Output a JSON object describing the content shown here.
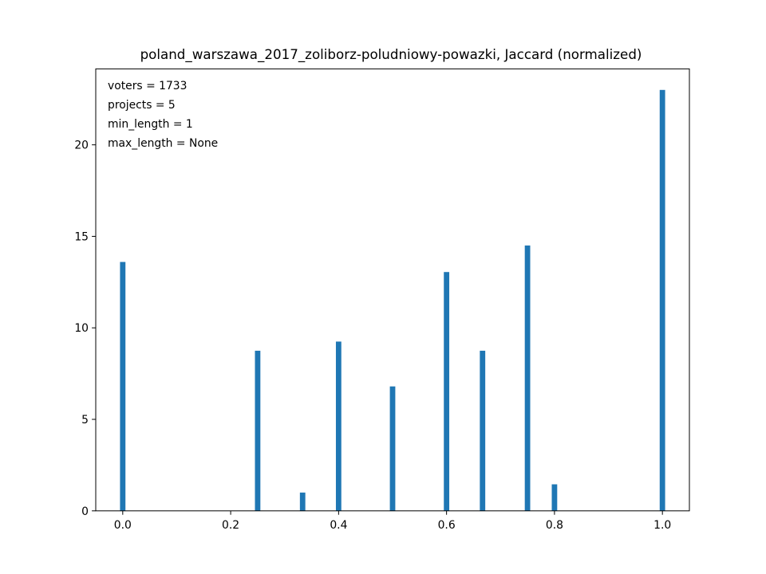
{
  "chart_data": {
    "type": "bar",
    "title": "poland_warszawa_2017_zoliborz-poludniowy-powazki, Jaccard (normalized)",
    "xlabel": "",
    "ylabel": "",
    "x": [
      0.0,
      0.25,
      0.3333,
      0.4,
      0.5,
      0.6,
      0.6667,
      0.75,
      0.8,
      1.0
    ],
    "values": [
      13.6,
      8.75,
      1.0,
      9.25,
      6.8,
      13.05,
      8.75,
      14.5,
      1.45,
      23.0
    ],
    "xlim": [
      -0.05,
      1.05
    ],
    "ylim": [
      0,
      24.15
    ],
    "xticks": [
      "0.0",
      "0.2",
      "0.4",
      "0.6",
      "0.8",
      "1.0"
    ],
    "xtick_values": [
      0.0,
      0.2,
      0.4,
      0.6,
      0.8,
      1.0
    ],
    "yticks": [
      "0",
      "5",
      "10",
      "15",
      "20"
    ],
    "ytick_values": [
      0,
      5,
      10,
      15,
      20
    ],
    "grid": false,
    "bar_color": "#1f77b4",
    "annotations": [
      "voters = 1733",
      "projects = 5",
      "min_length = 1",
      "max_length = None"
    ]
  }
}
